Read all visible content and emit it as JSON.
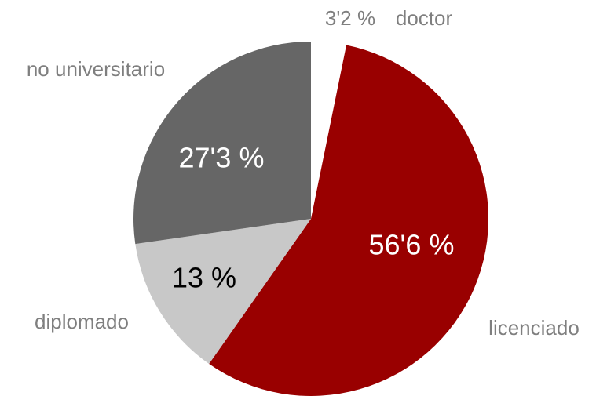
{
  "chart_data": {
    "type": "pie",
    "categories": [
      "doctor",
      "licenciado",
      "diplomado",
      "no universitario"
    ],
    "values": [
      3.2,
      56.6,
      13,
      27.3
    ],
    "value_labels": [
      "3'2 %",
      "56'6 %",
      "13 %",
      "27'3 %"
    ],
    "colors": [
      "#ffffff",
      "#990000",
      "#c8c8c8",
      "#666666"
    ]
  }
}
